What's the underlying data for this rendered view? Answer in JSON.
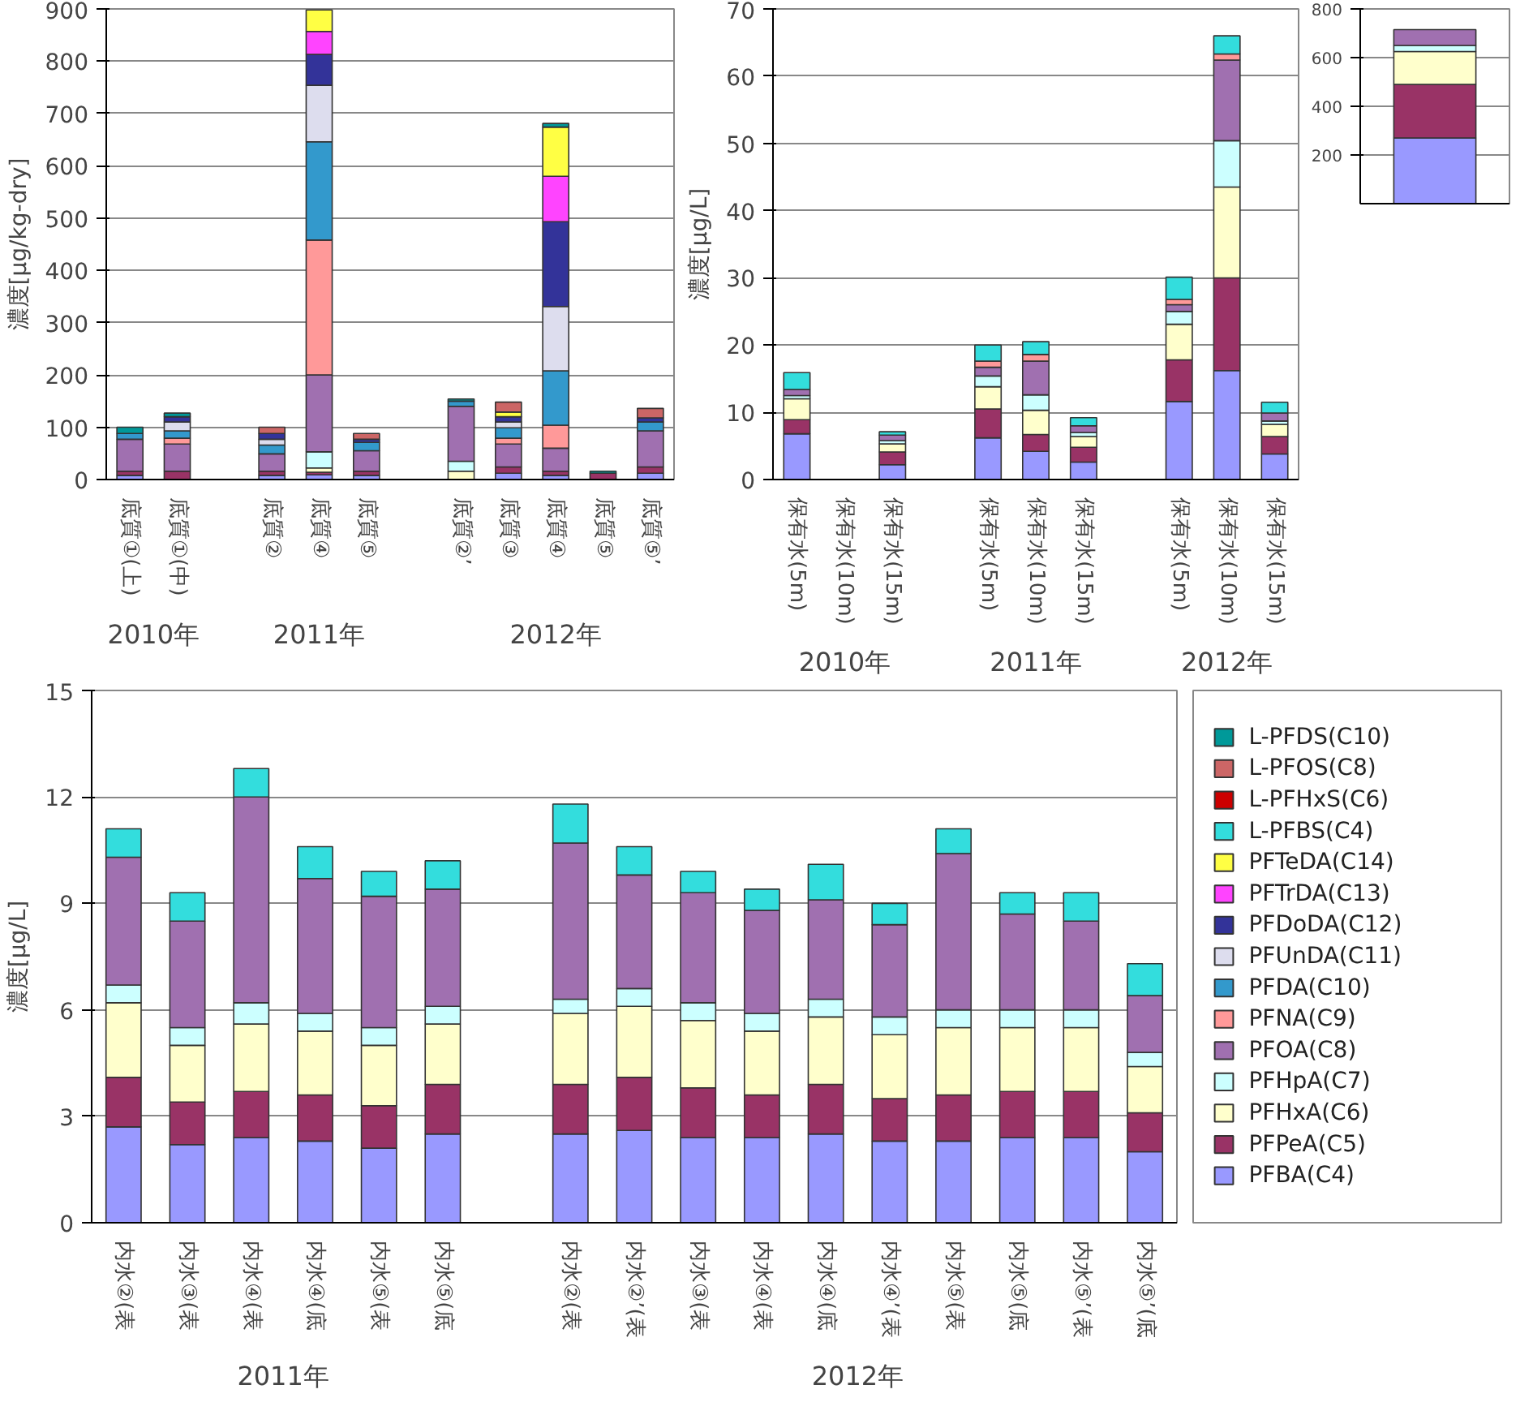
{
  "chart_data": [
    {
      "type": "bar",
      "stacked": true,
      "ylabel": "濃度[μg/kg-dry]",
      "categories": [
        "底質①(上)",
        "底質①(中)",
        null,
        "底質②",
        "底質④",
        "底質⑤",
        null,
        "底質②’",
        "底質③",
        "底質④",
        "底質⑤",
        "底質⑤’"
      ],
      "ylim": [
        0,
        900
      ],
      "yticks": [
        0,
        100,
        200,
        300,
        400,
        500,
        600,
        700,
        800,
        900
      ],
      "grid": "y",
      "annotations": [
        "2010年",
        "2011年",
        "2012年"
      ],
      "series": [
        {
          "color": "#9999ff",
          "values": [
            8,
            null,
            null,
            8,
            9,
            8,
            null,
            null,
            12,
            8,
            null,
            12
          ]
        },
        {
          "color": "#993366",
          "values": [
            8,
            16,
            null,
            8,
            5,
            8,
            null,
            null,
            12,
            8,
            12,
            12
          ]
        },
        {
          "color": "#ffffcc",
          "values": [
            null,
            null,
            null,
            null,
            8,
            null,
            null,
            16,
            null,
            null,
            null,
            null
          ]
        },
        {
          "color": "#ccffff",
          "values": [
            null,
            null,
            null,
            null,
            31,
            null,
            null,
            19,
            null,
            null,
            null,
            null
          ]
        },
        {
          "color": "#a070b0",
          "values": [
            61,
            52,
            null,
            33,
            147,
            39,
            null,
            105,
            44,
            44,
            null,
            69
          ]
        },
        {
          "color": "#ff9999",
          "values": [
            null,
            11,
            null,
            null,
            258,
            null,
            null,
            null,
            11,
            44,
            null,
            null
          ]
        },
        {
          "color": "#3399cc",
          "values": [
            11,
            14,
            null,
            17,
            188,
            16,
            null,
            10,
            20,
            104,
            null,
            17
          ]
        },
        {
          "color": "#ddddee",
          "values": [
            null,
            17,
            null,
            11,
            108,
            null,
            null,
            null,
            11,
            123,
            null,
            null
          ]
        },
        {
          "color": "#333399",
          "values": [
            null,
            10,
            null,
            11,
            59,
            6,
            null,
            null,
            10,
            162,
            null,
            8
          ]
        },
        {
          "color": "#ff44ff",
          "values": [
            null,
            null,
            null,
            null,
            44,
            null,
            null,
            null,
            null,
            87,
            null,
            null
          ]
        },
        {
          "color": "#ffff44",
          "values": [
            null,
            null,
            null,
            null,
            41,
            null,
            null,
            null,
            9,
            94,
            null,
            null
          ]
        },
        {
          "color": "#cc6666",
          "values": [
            null,
            null,
            null,
            12,
            null,
            11,
            null,
            null,
            19,
            null,
            null,
            18
          ]
        },
        {
          "color": "#009999",
          "values": [
            12,
            7,
            null,
            null,
            null,
            null,
            null,
            4,
            null,
            7,
            4,
            null
          ]
        }
      ]
    },
    {
      "type": "bar",
      "stacked": true,
      "ylabel": "濃度[μg/L]",
      "categories": [
        "保有水(5m)",
        "保有水(10m)",
        "保有水(15m)",
        null,
        "保有水(5m)",
        "保有水(10m)",
        "保有水(15m)",
        null,
        "保有水(5m)",
        "保有水(10m)",
        "保有水(15m)"
      ],
      "ylim": [
        0,
        70
      ],
      "yticks": [
        0,
        10,
        20,
        30,
        40,
        50,
        60,
        70
      ],
      "grid": "y",
      "annotations": [
        "2010年",
        "2011年",
        "2012年"
      ],
      "series": [
        {
          "color": "#9999ff",
          "values": [
            6.8,
            null,
            2.2,
            null,
            6.2,
            4.2,
            2.6,
            null,
            11.6,
            16.2,
            3.8
          ]
        },
        {
          "color": "#993366",
          "values": [
            2.1,
            null,
            1.9,
            null,
            4.3,
            2.5,
            2.2,
            null,
            6.2,
            13.8,
            2.6
          ]
        },
        {
          "color": "#ffffcc",
          "values": [
            3.1,
            null,
            1.2,
            null,
            3.3,
            3.6,
            1.6,
            null,
            5.3,
            13.5,
            1.8
          ]
        },
        {
          "color": "#ccffff",
          "values": [
            0.5,
            null,
            0.5,
            null,
            1.6,
            2.3,
            0.6,
            null,
            1.9,
            6.9,
            0.5
          ]
        },
        {
          "color": "#a070b0",
          "values": [
            0.9,
            null,
            0.8,
            null,
            1.3,
            5.0,
            1.0,
            null,
            1.0,
            12.0,
            1.2
          ]
        },
        {
          "color": "#ff9999",
          "values": [
            null,
            null,
            null,
            null,
            0.9,
            1.0,
            null,
            null,
            0.8,
            0.9,
            null
          ]
        },
        {
          "color": "#33dddd",
          "values": [
            2.5,
            null,
            0.5,
            null,
            2.4,
            1.9,
            1.2,
            null,
            3.3,
            2.7,
            1.6
          ]
        }
      ]
    },
    {
      "type": "bar",
      "stacked": true,
      "categories": [
        null
      ],
      "ylim": [
        0,
        800
      ],
      "yticks": [
        200,
        400,
        600,
        800
      ],
      "grid": "y",
      "tick_labels": "y",
      "series": [
        {
          "color": "#9999ff",
          "values": [
            270
          ]
        },
        {
          "color": "#993366",
          "values": [
            220
          ]
        },
        {
          "color": "#ffffcc",
          "values": [
            135
          ]
        },
        {
          "color": "#ccffff",
          "values": [
            25
          ]
        },
        {
          "color": "#a070b0",
          "values": [
            65
          ]
        }
      ]
    },
    {
      "type": "bar",
      "stacked": true,
      "ylabel": "濃度[μg/L]",
      "categories": [
        "内水②(表",
        "内水③(表",
        "内水④(表",
        "内水④(底",
        "内水⑤(表",
        "内水⑤(底",
        null,
        "内水②(表",
        "内水②’(表",
        "内水③(表",
        "内水④(表",
        "内水④(底",
        "内水④’(表",
        "内水⑤(表",
        "内水⑤(底",
        "内水⑤’(表",
        "内水⑤’(底"
      ],
      "ylim": [
        0,
        15
      ],
      "yticks": [
        0,
        3,
        6,
        9,
        12,
        15
      ],
      "grid": "y",
      "legend": "right",
      "annotations": [
        "2011年",
        "2012年"
      ],
      "series": [
        {
          "name": "PFBA(C4)",
          "color": "#9999ff",
          "values": [
            2.7,
            2.2,
            2.4,
            2.3,
            2.1,
            2.5,
            null,
            2.5,
            2.6,
            2.4,
            2.4,
            2.5,
            2.3,
            2.3,
            2.4,
            2.4,
            2.0
          ]
        },
        {
          "name": "PFPeA(C5)",
          "color": "#993366",
          "values": [
            1.4,
            1.2,
            1.3,
            1.3,
            1.2,
            1.4,
            null,
            1.4,
            1.5,
            1.4,
            1.2,
            1.4,
            1.2,
            1.3,
            1.3,
            1.3,
            1.1
          ]
        },
        {
          "name": "PFHxA(C6)",
          "color": "#ffffcc",
          "values": [
            2.1,
            1.6,
            1.9,
            1.8,
            1.7,
            1.7,
            null,
            2.0,
            2.0,
            1.9,
            1.8,
            1.9,
            1.8,
            1.9,
            1.8,
            1.8,
            1.3
          ]
        },
        {
          "name": "PFHpA(C7)",
          "color": "#ccffff",
          "values": [
            0.5,
            0.5,
            0.6,
            0.5,
            0.5,
            0.5,
            null,
            0.4,
            0.5,
            0.5,
            0.5,
            0.5,
            0.5,
            0.5,
            0.5,
            0.5,
            0.4
          ]
        },
        {
          "name": "PFOA(C8)",
          "color": "#a070b0",
          "values": [
            3.6,
            3.0,
            5.8,
            3.8,
            3.7,
            3.3,
            null,
            4.4,
            3.2,
            3.1,
            2.9,
            2.8,
            2.6,
            4.4,
            2.7,
            2.5,
            1.6
          ]
        },
        {
          "name": "PFNA(C9)",
          "color": "#ff9999",
          "values": [
            null,
            null,
            null,
            null,
            null,
            null,
            null,
            null,
            null,
            null,
            null,
            null,
            null,
            null,
            null,
            null,
            null
          ]
        },
        {
          "name": "PFDA(C10)",
          "color": "#3399cc",
          "values": [
            null,
            null,
            null,
            null,
            null,
            null,
            null,
            null,
            null,
            null,
            null,
            null,
            null,
            null,
            null,
            null,
            null
          ]
        },
        {
          "name": "PFUnDA(C11)",
          "color": "#ddddee",
          "values": [
            null,
            null,
            null,
            null,
            null,
            null,
            null,
            null,
            null,
            null,
            null,
            null,
            null,
            null,
            null,
            null,
            null
          ]
        },
        {
          "name": "PFDoDA(C12)",
          "color": "#333399",
          "values": [
            null,
            null,
            null,
            null,
            null,
            null,
            null,
            null,
            null,
            null,
            null,
            null,
            null,
            null,
            null,
            null,
            null
          ]
        },
        {
          "name": "PFTrDA(C13)",
          "color": "#ff44ff",
          "values": [
            null,
            null,
            null,
            null,
            null,
            null,
            null,
            null,
            null,
            null,
            null,
            null,
            null,
            null,
            null,
            null,
            null
          ]
        },
        {
          "name": "PFTeDA(C14)",
          "color": "#ffff44",
          "values": [
            null,
            null,
            null,
            null,
            null,
            null,
            null,
            null,
            null,
            null,
            null,
            null,
            null,
            null,
            null,
            null,
            null
          ]
        },
        {
          "name": "L-PFBS(C4)",
          "color": "#33dddd",
          "values": [
            0.8,
            0.8,
            0.8,
            0.9,
            0.7,
            0.8,
            null,
            1.1,
            0.8,
            0.6,
            0.6,
            1.0,
            0.6,
            0.7,
            0.6,
            0.8,
            0.9
          ]
        },
        {
          "name": "L-PFHxS(C6)",
          "color": "#cc0000",
          "values": [
            null,
            null,
            null,
            null,
            null,
            null,
            null,
            null,
            null,
            null,
            null,
            null,
            null,
            null,
            null,
            null,
            null
          ]
        },
        {
          "name": "L-PFOS(C8)",
          "color": "#cc6666",
          "values": [
            null,
            null,
            null,
            null,
            null,
            null,
            null,
            null,
            null,
            null,
            null,
            null,
            null,
            null,
            null,
            null,
            null
          ]
        },
        {
          "name": "L-PFDS(C10)",
          "color": "#009999",
          "values": [
            null,
            null,
            null,
            null,
            null,
            null,
            null,
            null,
            null,
            null,
            null,
            null,
            null,
            null,
            null,
            null,
            null
          ]
        }
      ]
    }
  ]
}
